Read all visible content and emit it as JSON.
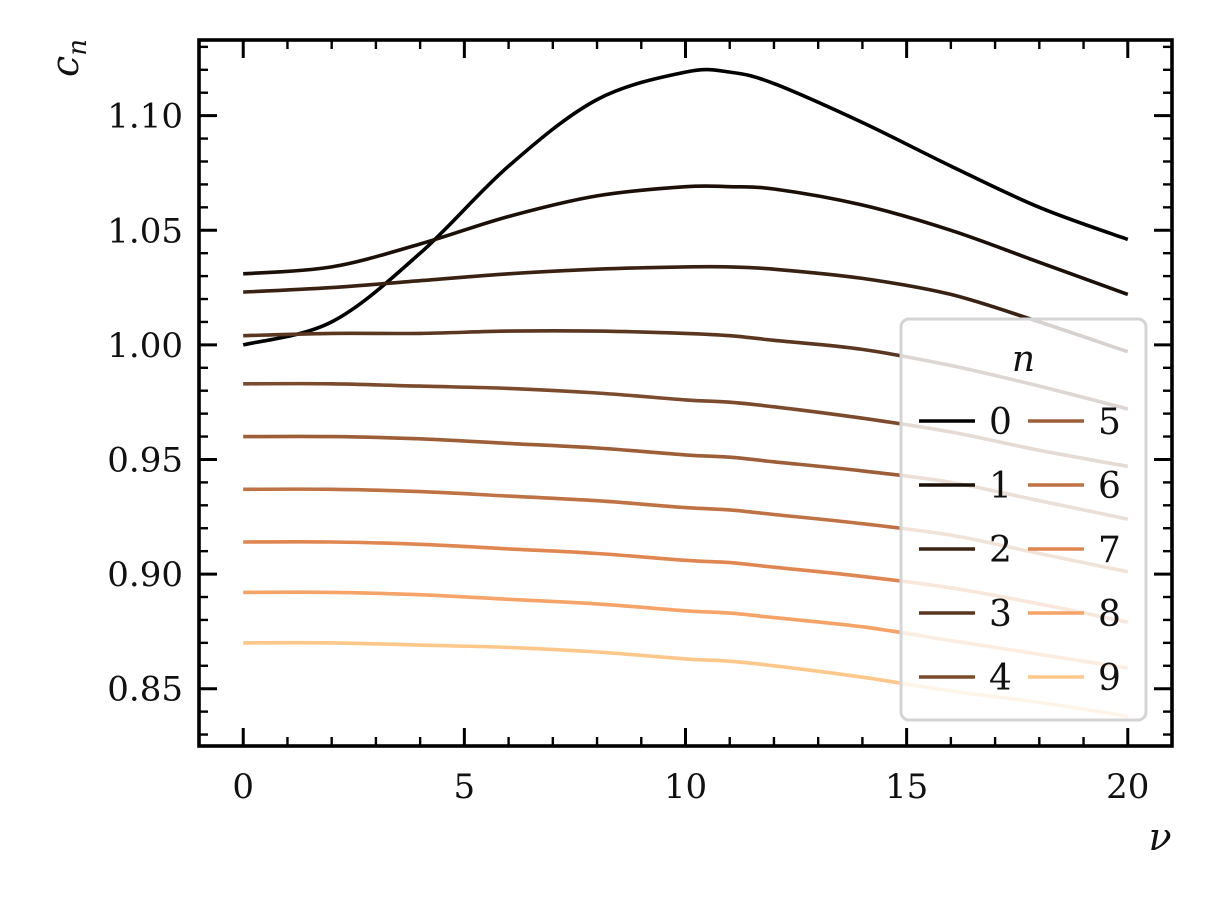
{
  "chart_data": {
    "type": "line",
    "xlabel": "ν",
    "ylabel_main": "c",
    "ylabel_sub": "n",
    "xlim": [
      -1,
      21
    ],
    "ylim": [
      0.825,
      1.133
    ],
    "xticks": [
      0,
      5,
      10,
      15,
      20
    ],
    "xtick_labels": [
      "0",
      "5",
      "10",
      "15",
      "20"
    ],
    "yticks": [
      0.85,
      0.9,
      0.95,
      1.0,
      1.05,
      1.1
    ],
    "ytick_labels": [
      "0.85",
      "0.90",
      "0.95",
      "1.00",
      "1.05",
      "1.10"
    ],
    "grid": false,
    "legend": {
      "title": "n",
      "placement": "lower-right",
      "columns": 2
    },
    "x": [
      0,
      2,
      4,
      6,
      8,
      10,
      11,
      12,
      14,
      16,
      18,
      20
    ],
    "series": [
      {
        "name": "0",
        "color": "#000000",
        "values": [
          1.0,
          1.01,
          1.04,
          1.078,
          1.107,
          1.119,
          1.119,
          1.114,
          1.097,
          1.078,
          1.06,
          1.046
        ]
      },
      {
        "name": "1",
        "color": "#1b0f08",
        "values": [
          1.031,
          1.034,
          1.044,
          1.056,
          1.065,
          1.069,
          1.069,
          1.068,
          1.061,
          1.05,
          1.036,
          1.022
        ]
      },
      {
        "name": "2",
        "color": "#3a2213",
        "values": [
          1.023,
          1.025,
          1.028,
          1.031,
          1.033,
          1.034,
          1.034,
          1.033,
          1.029,
          1.022,
          1.01,
          0.997
        ]
      },
      {
        "name": "3",
        "color": "#5b3620",
        "values": [
          1.004,
          1.005,
          1.005,
          1.006,
          1.006,
          1.005,
          1.004,
          1.002,
          0.998,
          0.991,
          0.982,
          0.972
        ]
      },
      {
        "name": "4",
        "color": "#7c4a2c",
        "values": [
          0.983,
          0.983,
          0.982,
          0.981,
          0.979,
          0.976,
          0.975,
          0.973,
          0.968,
          0.962,
          0.954,
          0.947
        ]
      },
      {
        "name": "5",
        "color": "#9d5e38",
        "values": [
          0.96,
          0.96,
          0.959,
          0.957,
          0.955,
          0.952,
          0.951,
          0.949,
          0.945,
          0.94,
          0.932,
          0.924
        ]
      },
      {
        "name": "6",
        "color": "#bf7244",
        "values": [
          0.937,
          0.937,
          0.936,
          0.934,
          0.932,
          0.929,
          0.928,
          0.926,
          0.922,
          0.917,
          0.909,
          0.901
        ]
      },
      {
        "name": "7",
        "color": "#e08650",
        "values": [
          0.914,
          0.914,
          0.913,
          0.911,
          0.909,
          0.906,
          0.905,
          0.903,
          0.899,
          0.894,
          0.887,
          0.879
        ]
      },
      {
        "name": "8",
        "color": "#f5a366",
        "values": [
          0.892,
          0.892,
          0.891,
          0.889,
          0.887,
          0.884,
          0.883,
          0.881,
          0.877,
          0.871,
          0.865,
          0.859
        ]
      },
      {
        "name": "9",
        "color": "#ffc78a",
        "values": [
          0.87,
          0.87,
          0.869,
          0.868,
          0.866,
          0.863,
          0.862,
          0.86,
          0.855,
          0.849,
          0.844,
          0.838
        ]
      }
    ]
  }
}
